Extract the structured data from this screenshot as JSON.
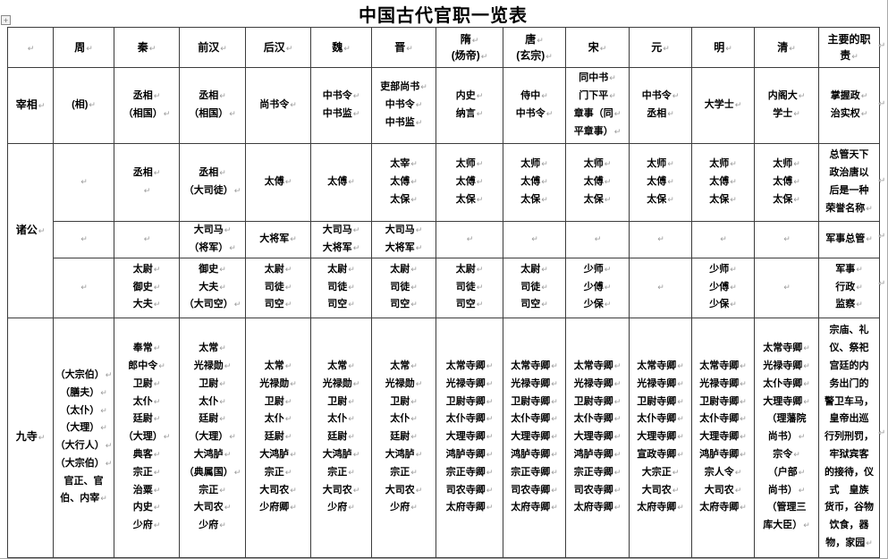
{
  "title": "中国古代官职一览表",
  "formatting": {
    "paragraph_mark": "↵",
    "move_handle_glyph": "+"
  },
  "table": {
    "header": [
      {
        "lines": []
      },
      {
        "lines": [
          "周"
        ]
      },
      {
        "lines": [
          "秦"
        ]
      },
      {
        "lines": [
          "前汉"
        ]
      },
      {
        "lines": [
          "后汉"
        ]
      },
      {
        "lines": [
          "魏"
        ]
      },
      {
        "lines": [
          "晋"
        ]
      },
      {
        "lines": [
          "隋",
          "(炀帝)"
        ]
      },
      {
        "lines": [
          "唐",
          "(玄宗)"
        ]
      },
      {
        "lines": [
          "宋"
        ]
      },
      {
        "lines": [
          "元"
        ]
      },
      {
        "lines": [
          "明"
        ]
      },
      {
        "lines": [
          "清"
        ]
      },
      {
        "lines": [
          "主要的职",
          "责"
        ],
        "flow": true
      }
    ],
    "rows": [
      {
        "label": "宰相",
        "label_rowspan": 1,
        "cells": [
          {
            "lines": [
              "(相)"
            ]
          },
          {
            "lines": [
              "丞相",
              "（相国）"
            ]
          },
          {
            "lines": [
              "丞相",
              "（相国）"
            ]
          },
          {
            "lines": [
              "尚书令"
            ]
          },
          {
            "lines": [
              "中书令",
              "中书监"
            ]
          },
          {
            "lines": [
              "吏部尚书",
              "中书令",
              "中书监"
            ]
          },
          {
            "lines": [
              "内史",
              "纳言"
            ]
          },
          {
            "lines": [
              "侍中",
              "中书令"
            ]
          },
          {
            "lines": [
              "同中书",
              "门下平",
              "章事（同",
              "平章事）"
            ]
          },
          {
            "lines": [
              "中书令",
              "丞相"
            ]
          },
          {
            "lines": [
              "大学士"
            ]
          },
          {
            "lines": [
              "内阁大",
              "学士"
            ]
          },
          {
            "lines": [
              "掌握政",
              "治实权"
            ]
          }
        ]
      },
      {
        "label": "诸公",
        "label_rowspan": 3,
        "cells": [
          {
            "lines": []
          },
          {
            "lines": [
              "丞相",
              ""
            ]
          },
          {
            "lines": [
              "丞相",
              "（大司徒）"
            ]
          },
          {
            "lines": [
              "太傅"
            ]
          },
          {
            "lines": [
              "太傅"
            ]
          },
          {
            "lines": [
              "太宰",
              "太傅",
              "太保"
            ]
          },
          {
            "lines": [
              "太师",
              "太傅",
              "太保"
            ]
          },
          {
            "lines": [
              "太师",
              "太傅",
              "太保"
            ]
          },
          {
            "lines": [
              "太师",
              "太傅",
              "太保"
            ]
          },
          {
            "lines": [
              "太师",
              "太傅",
              "太保"
            ]
          },
          {
            "lines": [
              "太师",
              "太傅",
              "太保"
            ]
          },
          {
            "lines": [
              "太师",
              "太傅",
              "太保"
            ]
          },
          {
            "lines": [
              "总管天下",
              "政治唐以",
              "后是一种",
              "荣誉名称"
            ],
            "flow": true
          }
        ]
      },
      {
        "cells": [
          {
            "lines": []
          },
          {
            "lines": []
          },
          {
            "lines": [
              "大司马",
              "（将军）"
            ]
          },
          {
            "lines": [
              "大将军"
            ]
          },
          {
            "lines": [
              "大司马",
              "大将军"
            ]
          },
          {
            "lines": [
              "大司马",
              "大将军"
            ]
          },
          {
            "lines": []
          },
          {
            "lines": []
          },
          {
            "lines": []
          },
          {
            "lines": []
          },
          {
            "lines": []
          },
          {
            "lines": []
          },
          {
            "lines": [
              "军事总管"
            ]
          }
        ]
      },
      {
        "cells": [
          {
            "lines": []
          },
          {
            "lines": [
              "太尉",
              "御史",
              "大夫"
            ]
          },
          {
            "lines": [
              "御史",
              "大夫",
              "（大司空）"
            ]
          },
          {
            "lines": [
              "太尉",
              "司徒",
              "司空"
            ]
          },
          {
            "lines": [
              "太尉",
              "司徒",
              "司空"
            ]
          },
          {
            "lines": [
              "太尉",
              "司徒",
              "司空"
            ]
          },
          {
            "lines": [
              "太尉",
              "司徒",
              "司空"
            ]
          },
          {
            "lines": [
              "太尉",
              "司徒",
              "司空"
            ]
          },
          {
            "lines": [
              "少师",
              "少傅",
              "少保"
            ]
          },
          {
            "lines": []
          },
          {
            "lines": [
              "少师",
              "少傅",
              "少保"
            ]
          },
          {
            "lines": []
          },
          {
            "lines": [
              "军事",
              "行政",
              "监察"
            ]
          }
        ]
      },
      {
        "label": "九寺",
        "label_rowspan": 1,
        "cells": [
          {
            "lines": [
              "（大宗伯）",
              "（膳夫）",
              "（太仆）",
              "（大理）",
              "（大行人）",
              "（大宗伯）",
              {
                "t": "官正、官",
                "m": false
              },
              "伯、内宰"
            ]
          },
          {
            "lines": [
              "奉常",
              "郎中令",
              "卫尉",
              "太仆",
              "廷尉",
              "（大理）",
              "典客",
              "宗正",
              "治粟",
              "内史",
              "少府"
            ]
          },
          {
            "lines": [
              "太常",
              "光禄勋",
              "卫尉",
              "太仆",
              "廷尉",
              "（大理）",
              "大鸿胪",
              "（典属国）",
              "宗正",
              "大司农",
              "少府"
            ]
          },
          {
            "lines": [
              "太常",
              "光禄勋",
              "卫尉",
              "太仆",
              "廷尉",
              "大鸿胪",
              "宗正",
              "大司农",
              "少府卿"
            ]
          },
          {
            "lines": [
              "太常",
              "光禄勋",
              "卫尉",
              "太仆",
              "廷尉",
              "大鸿胪",
              "宗正",
              "大司农",
              "少府"
            ]
          },
          {
            "lines": [
              "太常",
              "光禄勋",
              "卫尉",
              "太仆",
              "廷尉",
              "大鸿胪",
              "宗正",
              "大司农",
              "少府"
            ]
          },
          {
            "lines": [
              "太常寺卿",
              "光禄寺卿",
              "卫尉寺卿",
              "太仆寺卿",
              "大理寺卿",
              "鸿胪寺卿",
              "宗正寺卿",
              "司农寺卿",
              "太府寺卿"
            ]
          },
          {
            "lines": [
              "太常寺卿",
              "光禄寺卿",
              "卫尉寺卿",
              "太仆寺卿",
              "大理寺卿",
              "鸿胪寺卿",
              "宗正寺卿",
              "司农寺卿",
              "太府寺卿"
            ]
          },
          {
            "lines": [
              "太常寺卿",
              "光禄寺卿",
              "卫尉寺卿",
              "太仆寺卿",
              "大理寺卿",
              "鸿胪寺卿",
              "宗正寺卿",
              "司农寺卿",
              "太府寺卿"
            ]
          },
          {
            "lines": [
              "太常寺卿",
              "光禄寺卿",
              "卫尉寺卿",
              "太仆寺卿",
              "大理寺卿",
              "宣政寺卿",
              "大宗正",
              "大司农",
              "太府寺卿"
            ]
          },
          {
            "lines": [
              "太常寺卿",
              "光禄寺卿",
              "卫尉寺卿",
              "太仆寺卿",
              "大理寺卿",
              "鸿胪寺卿",
              "宗人令",
              "大司农",
              "太府寺卿"
            ]
          },
          {
            "lines": [
              "太常寺卿",
              "光禄寺卿",
              "太仆寺卿",
              "大理寺卿",
              {
                "t": "（理藩院",
                "m": false
              },
              "尚书）",
              "宗令",
              "（户部",
              "尚书）",
              {
                "t": "（管理三",
                "m": false
              },
              "库大臣）"
            ]
          },
          {
            "lines": [
              "宗庙、礼",
              "仪、祭祀",
              "宫廷的内",
              "务出门的",
              "警卫车马，",
              "皇帝出巡",
              "行列刑罚，",
              "牢狱宾客",
              "的接待，仪",
              "式　皇族",
              "货币，谷物",
              "饮食，器",
              "物，家园"
            ],
            "flow": true
          }
        ]
      }
    ]
  }
}
